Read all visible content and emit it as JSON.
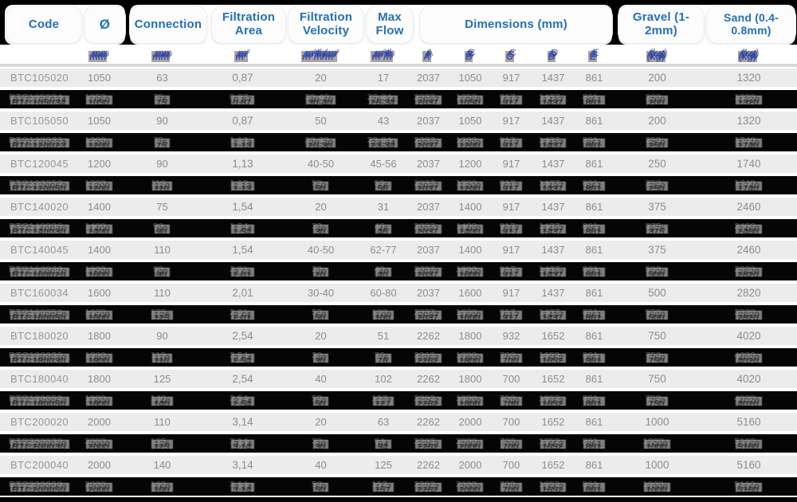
{
  "header": {
    "code": "Code",
    "diameter": "Ø",
    "connection": "Connection",
    "filtration_area": "Filtration Area",
    "filtration_velocity": "Filtration Velocity",
    "max_flow": "Max Flow",
    "dimensions": "Dimensions (mm)",
    "gravel": "Gravel (1-2mm)",
    "sand": "Sand (0.4-0.8mm)"
  },
  "units": {
    "diameter": "mm",
    "connection": "mm",
    "area": "m²",
    "velocity": "m³/h/m²",
    "flow": "m³/h",
    "dim_letters": [
      "A",
      "B",
      "C",
      "D",
      "E"
    ],
    "gravel": "(kg)",
    "sand": "(kg)"
  },
  "colors": {
    "header_text": "#2470b6",
    "units_text": "#2b55e2",
    "row_bg": "#ececec",
    "row_text": "#8c8c8c",
    "canvas_bg": "#000000"
  },
  "rows": [
    {
      "glitch": false,
      "cells": [
        "BTC105020",
        "1050",
        "63",
        "0,87",
        "20",
        "17",
        "2037",
        "1050",
        "917",
        "1437",
        "861",
        "200",
        "1320"
      ]
    },
    {
      "glitch": true,
      "cells": [
        "BTC105034",
        "1050",
        "75",
        "0,87",
        "30-40",
        "26-34",
        "2037",
        "1050",
        "917",
        "1437",
        "861",
        "200",
        "1320"
      ]
    },
    {
      "glitch": false,
      "cells": [
        "BTC105050",
        "1050",
        "90",
        "0,87",
        "50",
        "43",
        "2037",
        "1050",
        "917",
        "1437",
        "861",
        "200",
        "1320"
      ]
    },
    {
      "glitch": true,
      "cells": [
        "BTC120023",
        "1200",
        "75",
        "1,13",
        "20-30",
        "23-34",
        "2037",
        "1200",
        "917",
        "1437",
        "861",
        "250",
        "1740"
      ]
    },
    {
      "glitch": false,
      "cells": [
        "BTC120045",
        "1200",
        "90",
        "1,13",
        "40-50",
        "45-56",
        "2037",
        "1200",
        "917",
        "1437",
        "861",
        "250",
        "1740"
      ]
    },
    {
      "glitch": true,
      "cells": [
        "BTC120050",
        "1200",
        "110",
        "1,13",
        "50",
        "56",
        "2037",
        "1200",
        "917",
        "1437",
        "861",
        "250",
        "1740"
      ]
    },
    {
      "glitch": false,
      "cells": [
        "BTC140020",
        "1400",
        "75",
        "1,54",
        "20",
        "31",
        "2037",
        "1400",
        "917",
        "1437",
        "861",
        "375",
        "2460"
      ]
    },
    {
      "glitch": true,
      "cells": [
        "BTC140030",
        "1400",
        "90",
        "1,54",
        "30",
        "46",
        "2037",
        "1400",
        "917",
        "1437",
        "861",
        "375",
        "2460"
      ]
    },
    {
      "glitch": false,
      "cells": [
        "BTC140045",
        "1400",
        "110",
        "1,54",
        "40-50",
        "62-77",
        "2037",
        "1400",
        "917",
        "1437",
        "861",
        "375",
        "2460"
      ]
    },
    {
      "glitch": true,
      "cells": [
        "BTC160020",
        "1600",
        "90",
        "2,01",
        "20",
        "40",
        "2037",
        "1600",
        "917",
        "1437",
        "861",
        "500",
        "2820"
      ]
    },
    {
      "glitch": false,
      "cells": [
        "BTC160034",
        "1600",
        "110",
        "2,01",
        "30-40",
        "60-80",
        "2037",
        "1600",
        "917",
        "1437",
        "861",
        "500",
        "2820"
      ]
    },
    {
      "glitch": true,
      "cells": [
        "BTC160050",
        "1600",
        "125",
        "2,01",
        "50",
        "100",
        "2037",
        "1600",
        "917",
        "1437",
        "861",
        "500",
        "2820"
      ]
    },
    {
      "glitch": false,
      "cells": [
        "BTC180020",
        "1800",
        "90",
        "2,54",
        "20",
        "51",
        "2262",
        "1800",
        "932",
        "1652",
        "861",
        "750",
        "4020"
      ]
    },
    {
      "glitch": true,
      "cells": [
        "BTC180030",
        "1800",
        "110",
        "2,54",
        "30",
        "76",
        "2262",
        "1800",
        "700",
        "1652",
        "861",
        "750",
        "4020"
      ]
    },
    {
      "glitch": false,
      "cells": [
        "BTC180040",
        "1800",
        "125",
        "2,54",
        "40",
        "102",
        "2262",
        "1800",
        "700",
        "1652",
        "861",
        "750",
        "4020"
      ]
    },
    {
      "glitch": true,
      "cells": [
        "BTC180050",
        "1800",
        "140",
        "2,54",
        "50",
        "127",
        "2262",
        "1800",
        "700",
        "1652",
        "861",
        "750",
        "4020"
      ]
    },
    {
      "glitch": false,
      "cells": [
        "BTC200020",
        "2000",
        "110",
        "3,14",
        "20",
        "63",
        "2262",
        "2000",
        "700",
        "1652",
        "861",
        "1000",
        "5160"
      ]
    },
    {
      "glitch": true,
      "cells": [
        "BTC200030",
        "2000",
        "125",
        "3,14",
        "30",
        "94",
        "2262",
        "2000",
        "700",
        "1652",
        "861",
        "1000",
        "5160"
      ]
    },
    {
      "glitch": false,
      "cells": [
        "BTC200040",
        "2000",
        "140",
        "3,14",
        "40",
        "125",
        "2262",
        "2000",
        "700",
        "1652",
        "861",
        "1000",
        "5160"
      ]
    },
    {
      "glitch": true,
      "cells": [
        "BTC200050",
        "2000",
        "160",
        "3,14",
        "50",
        "157",
        "2262",
        "2000",
        "700",
        "1652",
        "861",
        "1000",
        "5160"
      ]
    }
  ]
}
